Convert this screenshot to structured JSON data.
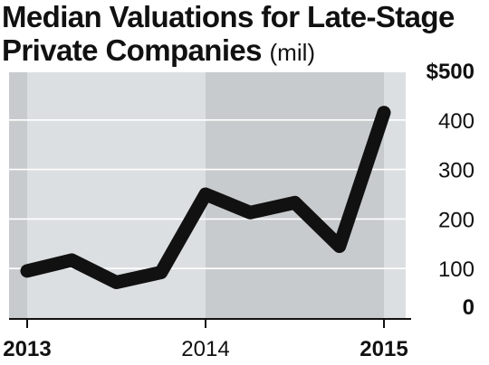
{
  "title": {
    "main_line1": "Median Valuations for Late-Stage",
    "main_line2": "Private Companies",
    "unit": "(mil)"
  },
  "chart_data": {
    "type": "line",
    "title": "Median Valuations for Late-Stage Private Companies (mil)",
    "xlabel": "",
    "ylabel": "",
    "ylim": [
      0,
      500
    ],
    "x_range": [
      2013.0,
      2015.0
    ],
    "x": [
      2013.0,
      2013.25,
      2013.5,
      2013.75,
      2014.0,
      2014.25,
      2014.5,
      2014.75,
      2015.0
    ],
    "series": [
      {
        "values": [
          95,
          117,
          72,
          92,
          250,
          213,
          233,
          145,
          415
        ]
      }
    ],
    "y_ticks": [
      {
        "value": 500,
        "label": "$500",
        "bold": true
      },
      {
        "value": 400,
        "label": "400",
        "bold": false
      },
      {
        "value": 300,
        "label": "300",
        "bold": false
      },
      {
        "value": 200,
        "label": "200",
        "bold": false
      },
      {
        "value": 100,
        "label": "100",
        "bold": false
      },
      {
        "value": 0,
        "label": "0",
        "bold": true
      }
    ],
    "x_ticks": [
      {
        "value": 2013,
        "label": "2013",
        "bold": true
      },
      {
        "value": 2014,
        "label": "2014",
        "bold": false
      },
      {
        "value": 2015,
        "label": "2015",
        "bold": true
      }
    ],
    "grid": true,
    "colors": {
      "line": "#111111",
      "band_light": "#dcdfe1",
      "band_dark": "#c8cbcd",
      "gridline": "#ffffff",
      "axis": "#111111"
    }
  }
}
